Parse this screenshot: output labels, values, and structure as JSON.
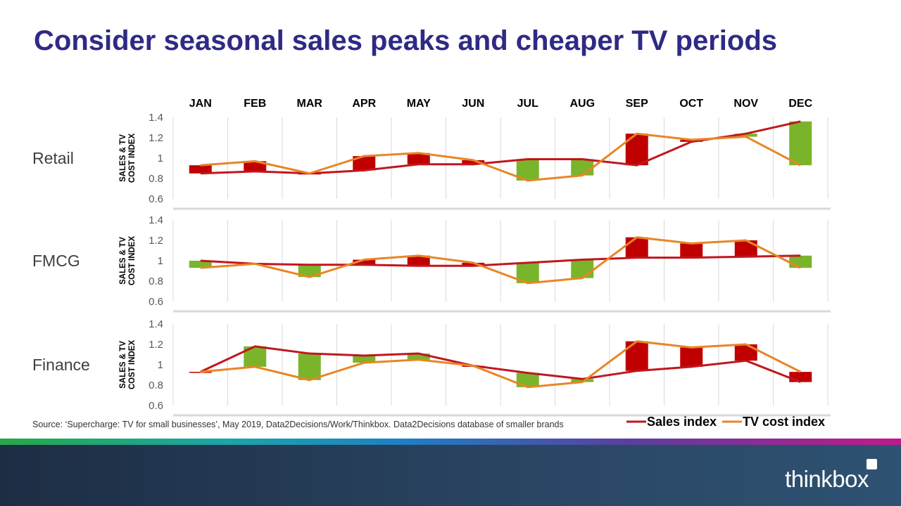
{
  "title": "Consider seasonal sales peaks and cheaper TV periods",
  "source": "Source: ‘Supercharge: TV for small businesses’, May 2019, Data2Decisions/Work/Thinkbox. Data2Decisions database of smaller brands",
  "brand": "thinkbox",
  "colors": {
    "sales": "#c0171e",
    "tv": "#e98525",
    "bar_up": "#c00000",
    "bar_down": "#7ab42b",
    "title": "#2e2a85"
  },
  "chart_data": {
    "type": "line",
    "months": [
      "JAN",
      "FEB",
      "MAR",
      "APR",
      "MAY",
      "JUN",
      "JUL",
      "AUG",
      "SEP",
      "OCT",
      "NOV",
      "DEC"
    ],
    "ylabel": "SALES & TV COST INDEX",
    "ylim": [
      0.6,
      1.4
    ],
    "yticks": [
      "1.4",
      "1.2",
      "1",
      "0.8",
      "0.6"
    ],
    "legend": {
      "position": "bottom-right",
      "sales": "Sales index",
      "tv": "TV cost index"
    },
    "panels": [
      {
        "name": "Retail",
        "sales_index": [
          0.85,
          0.87,
          0.85,
          0.88,
          0.94,
          0.94,
          0.99,
          0.99,
          0.93,
          1.16,
          1.24,
          1.36
        ],
        "tv_cost_index": [
          0.93,
          0.97,
          0.85,
          1.02,
          1.05,
          0.98,
          0.78,
          0.83,
          1.24,
          1.18,
          1.21,
          0.93
        ]
      },
      {
        "name": "FMCG",
        "sales_index": [
          1.0,
          0.97,
          0.96,
          0.96,
          0.95,
          0.95,
          0.98,
          1.01,
          1.03,
          1.03,
          1.04,
          1.05
        ],
        "tv_cost_index": [
          0.93,
          0.97,
          0.84,
          1.01,
          1.05,
          0.98,
          0.78,
          0.83,
          1.23,
          1.17,
          1.2,
          0.93
        ]
      },
      {
        "name": "Finance",
        "sales_index": [
          0.93,
          1.18,
          1.11,
          1.09,
          1.11,
          0.99,
          0.92,
          0.86,
          0.94,
          0.98,
          1.04,
          0.83
        ],
        "tv_cost_index": [
          0.93,
          0.98,
          0.85,
          1.02,
          1.05,
          0.99,
          0.78,
          0.83,
          1.23,
          1.17,
          1.2,
          0.93
        ]
      }
    ]
  }
}
